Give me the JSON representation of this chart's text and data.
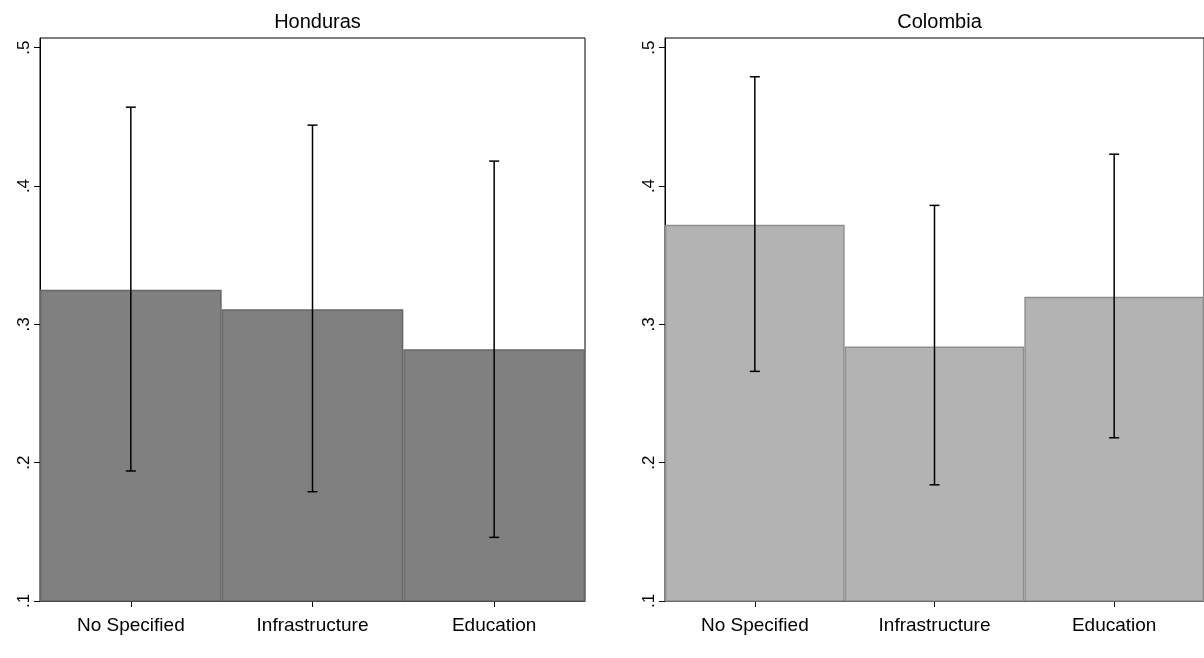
{
  "chart_data": [
    {
      "type": "bar",
      "title": "Honduras",
      "categories": [
        "No Specified",
        "Infrastructure",
        "Education"
      ],
      "values": [
        0.325,
        0.311,
        0.282
      ],
      "color": "#808080",
      "errors": [
        [
          0.194,
          0.457
        ],
        [
          0.179,
          0.444
        ],
        [
          0.146,
          0.418
        ]
      ],
      "ylim": [
        0.1,
        0.507
      ],
      "yticks": [
        {
          "value": 0.1,
          "label": ".1"
        },
        {
          "value": 0.2,
          "label": ".2"
        },
        {
          "value": 0.3,
          "label": ".3"
        },
        {
          "value": 0.4,
          "label": ".4"
        },
        {
          "value": 0.5,
          "label": ".5"
        }
      ],
      "grid": false
    },
    {
      "type": "bar",
      "title": "Colombia",
      "categories": [
        "No Specified",
        "Infrastructure",
        "Education"
      ],
      "values": [
        0.372,
        0.284,
        0.32
      ],
      "color": "#b3b3b3",
      "errors": [
        [
          0.266,
          0.479
        ],
        [
          0.184,
          0.386
        ],
        [
          0.218,
          0.423
        ]
      ],
      "ylim": [
        0.1,
        0.507
      ],
      "yticks": [
        {
          "value": 0.1,
          "label": ".1"
        },
        {
          "value": 0.2,
          "label": ".2"
        },
        {
          "value": 0.3,
          "label": ".3"
        },
        {
          "value": 0.4,
          "label": ".4"
        },
        {
          "value": 0.5,
          "label": ".5"
        }
      ],
      "grid": false
    }
  ]
}
